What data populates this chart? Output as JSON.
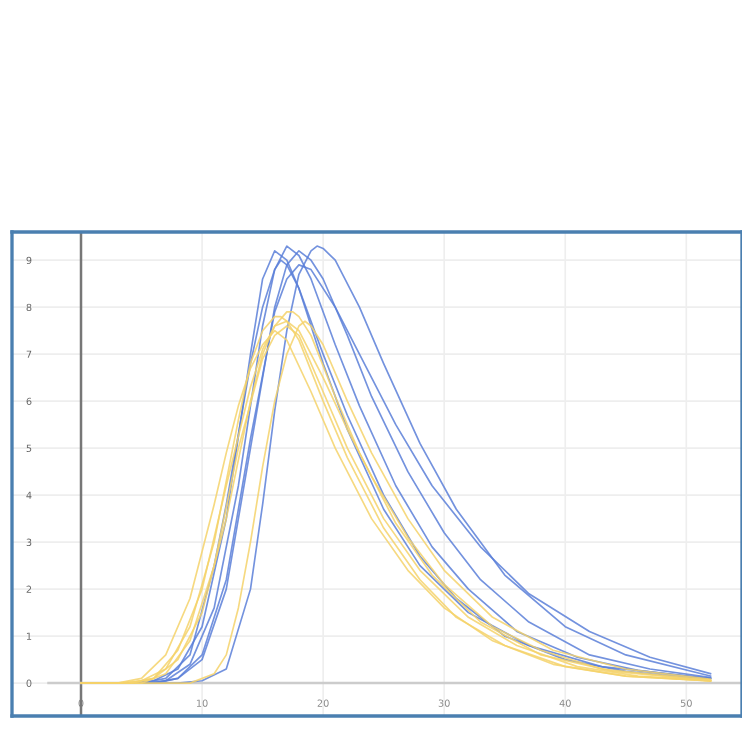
{
  "chart_data": {
    "type": "line",
    "xlim": [
      -5.7,
      54.6
    ],
    "ylim": [
      -0.7,
      9.6
    ],
    "xticks": [
      0,
      10,
      20,
      30,
      40,
      50
    ],
    "yticks": [
      0,
      1,
      2,
      3,
      4,
      5,
      6,
      7,
      8,
      9
    ],
    "grid": true,
    "legend": false,
    "marker": "none",
    "line_style": "solid",
    "ref_lines": [
      {
        "axis": "x",
        "value": 0,
        "color": "#777777"
      },
      {
        "axis": "y",
        "value": 0,
        "color": "#cccccc"
      }
    ],
    "series": [
      {
        "color": "#5b7fd8",
        "x": [
          0,
          4,
          6,
          8,
          10,
          12,
          14,
          15,
          16,
          17,
          18,
          20,
          22,
          25,
          28,
          31,
          35,
          40,
          45,
          50,
          52
        ],
        "values": [
          0,
          0,
          0.05,
          0.3,
          1.2,
          3.5,
          7.0,
          8.6,
          9.2,
          9.0,
          8.4,
          7.0,
          5.7,
          4.0,
          2.7,
          1.8,
          1.0,
          0.5,
          0.25,
          0.12,
          0.1
        ]
      },
      {
        "color": "#5b7fd8",
        "x": [
          0,
          5,
          7,
          9,
          11,
          13,
          15,
          16,
          17,
          18,
          19,
          21,
          23,
          26,
          29,
          32,
          36,
          41,
          46,
          50,
          52
        ],
        "values": [
          0,
          0,
          0.05,
          0.4,
          1.6,
          4.2,
          7.6,
          8.8,
          9.3,
          9.1,
          8.6,
          7.2,
          5.9,
          4.2,
          2.9,
          2.0,
          1.1,
          0.55,
          0.27,
          0.15,
          0.1
        ]
      },
      {
        "color": "#5b7fd8",
        "x": [
          0,
          6,
          8,
          10,
          12,
          14,
          16,
          17,
          18,
          19,
          20,
          22,
          24,
          27,
          30,
          33,
          37,
          42,
          47,
          52
        ],
        "values": [
          0,
          0,
          0.1,
          0.5,
          2.0,
          5.0,
          8.0,
          8.9,
          9.2,
          9.0,
          8.6,
          7.4,
          6.1,
          4.5,
          3.2,
          2.2,
          1.3,
          0.6,
          0.3,
          0.12
        ]
      },
      {
        "color": "#5b7fd8",
        "x": [
          0,
          8,
          10,
          12,
          14,
          15,
          16,
          17,
          18,
          19,
          19.5,
          20,
          21,
          23,
          25,
          28,
          31,
          35,
          40,
          45,
          52
        ],
        "values": [
          0,
          0,
          0.05,
          0.3,
          2.0,
          3.8,
          5.8,
          7.5,
          8.7,
          9.2,
          9.3,
          9.25,
          9.0,
          8.0,
          6.8,
          5.1,
          3.7,
          2.3,
          1.2,
          0.6,
          0.15
        ]
      },
      {
        "color": "#5b7fd8",
        "x": [
          0,
          5,
          7,
          9,
          11,
          12,
          13,
          14,
          15,
          16,
          16.5,
          17,
          18,
          20,
          22,
          25,
          28,
          32,
          37,
          43,
          52
        ],
        "values": [
          0,
          0,
          0.1,
          0.6,
          2.5,
          3.8,
          5.3,
          6.8,
          8.0,
          8.8,
          9.0,
          8.9,
          8.4,
          6.8,
          5.4,
          3.7,
          2.5,
          1.5,
          0.8,
          0.35,
          0.1
        ]
      },
      {
        "color": "#5b7fd8",
        "x": [
          0,
          6,
          8,
          10,
          12,
          14,
          16,
          17,
          18,
          19,
          21,
          23,
          26,
          29,
          33,
          37,
          42,
          47,
          52
        ],
        "values": [
          0,
          0,
          0.1,
          0.6,
          2.2,
          5.2,
          7.9,
          8.6,
          8.9,
          8.8,
          8.0,
          7.0,
          5.5,
          4.2,
          2.9,
          1.9,
          1.1,
          0.55,
          0.2
        ]
      },
      {
        "color": "#f5d26a",
        "x": [
          0,
          3,
          5,
          7,
          9,
          11,
          13,
          14,
          15,
          16,
          16.5,
          17,
          18,
          20,
          22,
          25,
          28,
          31,
          35,
          40,
          45,
          52
        ],
        "values": [
          0,
          0,
          0.05,
          0.3,
          1.2,
          3.0,
          5.6,
          6.8,
          7.5,
          7.8,
          7.8,
          7.7,
          7.3,
          6.0,
          4.8,
          3.3,
          2.2,
          1.4,
          0.8,
          0.35,
          0.15,
          0.05
        ]
      },
      {
        "color": "#f5d26a",
        "x": [
          0,
          4,
          6,
          8,
          10,
          12,
          14,
          15,
          16,
          17,
          17.5,
          18,
          19,
          21,
          23,
          26,
          29,
          33,
          38,
          44,
          52
        ],
        "values": [
          0,
          0,
          0.1,
          0.5,
          1.5,
          3.5,
          6.0,
          7.0,
          7.6,
          7.9,
          7.9,
          7.8,
          7.4,
          6.1,
          4.9,
          3.4,
          2.3,
          1.3,
          0.6,
          0.25,
          0.05
        ]
      },
      {
        "color": "#f5d26a",
        "x": [
          0,
          5,
          7,
          9,
          11,
          13,
          15,
          16,
          17,
          18,
          20,
          22,
          25,
          28,
          32,
          36,
          41,
          46,
          52
        ],
        "values": [
          0,
          0,
          0.2,
          0.9,
          2.5,
          5.0,
          6.9,
          7.4,
          7.6,
          7.4,
          6.2,
          5.0,
          3.5,
          2.4,
          1.4,
          0.8,
          0.35,
          0.15,
          0.05
        ]
      },
      {
        "color": "#f5d26a",
        "x": [
          0,
          9,
          11,
          12,
          13,
          14,
          15,
          16,
          17,
          18,
          18.5,
          19,
          20,
          22,
          24,
          27,
          30,
          34,
          39,
          45,
          52
        ],
        "values": [
          0,
          0,
          0.2,
          0.6,
          1.6,
          3.0,
          4.6,
          6.0,
          7.0,
          7.6,
          7.7,
          7.6,
          7.2,
          6.0,
          4.9,
          3.5,
          2.4,
          1.4,
          0.7,
          0.3,
          0.08
        ]
      },
      {
        "color": "#f5d26a",
        "x": [
          0,
          3,
          5,
          7,
          9,
          11,
          12,
          13,
          14,
          15,
          16,
          17,
          19,
          21,
          24,
          27,
          30,
          34,
          39,
          45,
          52
        ],
        "values": [
          0,
          0,
          0.1,
          0.6,
          1.8,
          3.8,
          4.9,
          5.9,
          6.7,
          7.2,
          7.5,
          7.3,
          6.2,
          5.0,
          3.5,
          2.4,
          1.6,
          0.9,
          0.4,
          0.15,
          0.05
        ]
      },
      {
        "color": "#f5d26a",
        "x": [
          0,
          4,
          6,
          8,
          10,
          12,
          14,
          15,
          16,
          17,
          18,
          20,
          22,
          24,
          27,
          30,
          34,
          38,
          43,
          52
        ],
        "values": [
          0,
          0,
          0.1,
          0.7,
          2.0,
          4.2,
          6.3,
          7.1,
          7.6,
          7.7,
          7.5,
          6.5,
          5.4,
          4.4,
          3.1,
          2.1,
          1.2,
          0.7,
          0.3,
          0.06
        ]
      }
    ]
  }
}
